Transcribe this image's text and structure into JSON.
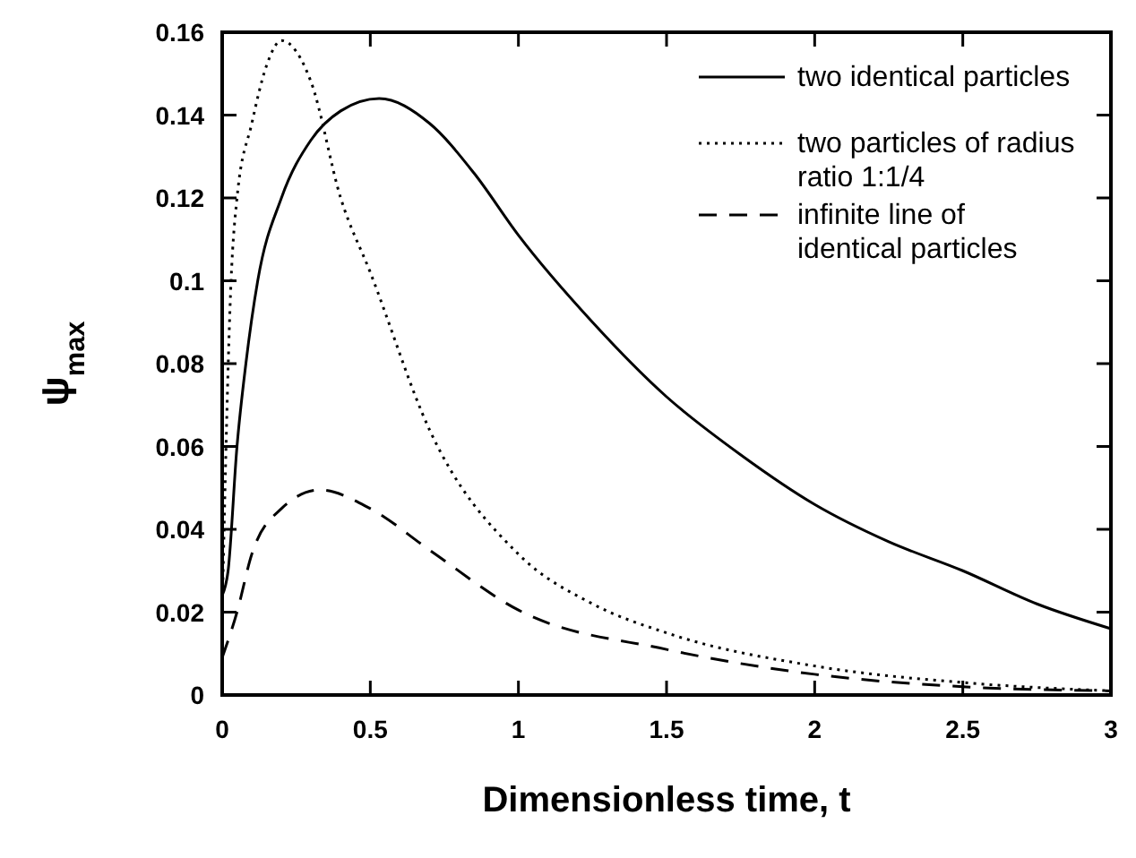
{
  "chart_data": {
    "type": "line",
    "xlabel": "Dimensionless time, t",
    "ylabel": "ψ$_{max}$",
    "xlim": [
      0,
      3
    ],
    "ylim": [
      0,
      0.16
    ],
    "xticks": [
      0,
      0.5,
      1,
      1.5,
      2,
      2.5,
      3
    ],
    "yticks": [
      0,
      0.02,
      0.04,
      0.06,
      0.08,
      0.1,
      0.12,
      0.14,
      0.16
    ],
    "legend": "top right",
    "grid": false,
    "series": [
      {
        "name": "two identical particles",
        "color": "#000000",
        "line_style": "solid",
        "x": [
          0,
          0.02,
          0.05,
          0.08,
          0.12,
          0.2,
          0.3,
          0.4,
          0.53,
          0.7,
          0.85,
          1,
          1.25,
          1.5,
          1.75,
          2,
          2.25,
          2.5,
          2.75,
          3
        ],
        "values": [
          0.024,
          0.03,
          0.06,
          0.08,
          0.1,
          0.12,
          0.134,
          0.141,
          0.144,
          0.138,
          0.126,
          0.111,
          0.09,
          0.072,
          0.058,
          0.046,
          0.037,
          0.03,
          0.022,
          0.016
        ]
      },
      {
        "name": "two particles of radius ratio 1:1/4",
        "color": "#000000",
        "line_style": "dotted",
        "x": [
          0,
          0.03,
          0.05,
          0.1,
          0.15,
          0.2,
          0.3,
          0.4,
          0.5,
          0.7,
          1,
          1.25,
          1.5,
          2,
          2.5,
          3
        ],
        "values": [
          0.02,
          0.1,
          0.12,
          0.138,
          0.152,
          0.158,
          0.148,
          0.12,
          0.102,
          0.064,
          0.034,
          0.022,
          0.015,
          0.007,
          0.003,
          0.001
        ]
      },
      {
        "name": "infinite line of identical particles",
        "color": "#000000",
        "line_style": "dashed",
        "x": [
          0,
          0.05,
          0.1,
          0.2,
          0.33,
          0.5,
          0.7,
          1,
          1.5,
          2,
          2.5,
          3
        ],
        "values": [
          0.009,
          0.02,
          0.034,
          0.045,
          0.0495,
          0.045,
          0.035,
          0.0205,
          0.011,
          0.005,
          0.002,
          0.001
        ]
      }
    ]
  }
}
